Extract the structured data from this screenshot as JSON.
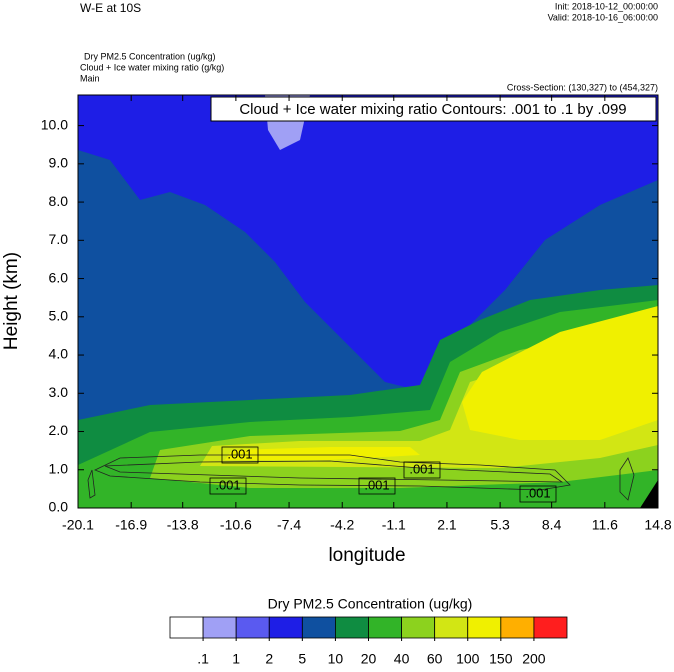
{
  "chart_data": {
    "type": "contour",
    "title": "W-E at 10S",
    "init": "Init: 2018-10-12_00:00:00",
    "valid": "Valid: 2018-10-16_06:00:00",
    "field_lines": [
      "Dry PM2.5 Concentration   (ug/kg)",
      "Cloud + Ice water mixing ratio   (g/kg)",
      "Main"
    ],
    "cross_section": "Cross-Section: (130,327) to (454,327)",
    "contour_note": "Cloud + Ice water mixing ratio Contours: .001 to .1 by .099",
    "contour_labels": [
      ".001",
      ".001",
      ".001",
      ".001",
      ".001"
    ],
    "xlabel": "longitude",
    "ylabel": "Height (km)",
    "xlim": [
      -20.1,
      14.8
    ],
    "ylim": [
      0,
      10.8
    ],
    "xticks": [
      -20.1,
      -16.9,
      -13.8,
      -10.6,
      -7.4,
      -4.2,
      -1.1,
      2.1,
      5.3,
      8.4,
      11.6,
      14.8
    ],
    "yticks": [
      {
        "value": 0,
        "label": "0.0"
      },
      {
        "value": 1,
        "label": "1.0"
      },
      {
        "value": 2,
        "label": "2.0"
      },
      {
        "value": 3,
        "label": "3.0"
      },
      {
        "value": 4,
        "label": "4.0"
      },
      {
        "value": 5,
        "label": "5.0"
      },
      {
        "value": 6,
        "label": "6.0"
      },
      {
        "value": 7,
        "label": "7.0"
      },
      {
        "value": 8,
        "label": "8.0"
      },
      {
        "value": 9,
        "label": "9.0"
      },
      {
        "value": 10,
        "label": "10.0"
      }
    ],
    "colorbar_title": "Dry PM2.5 Concentration  (ug/kg)",
    "levels": [
      {
        "value": 0.1,
        "label": ".1"
      },
      1,
      2,
      5,
      10,
      20,
      40,
      60,
      100,
      150,
      200
    ],
    "colors": [
      "#ffffff",
      "#a0a0f5",
      "#5a5af0",
      "#1e1ee6",
      "#0f50a0",
      "#0f8c41",
      "#32b428",
      "#8cd21e",
      "#d2e614",
      "#f0f000",
      "#ffaf00",
      "#ff1e1e"
    ]
  }
}
